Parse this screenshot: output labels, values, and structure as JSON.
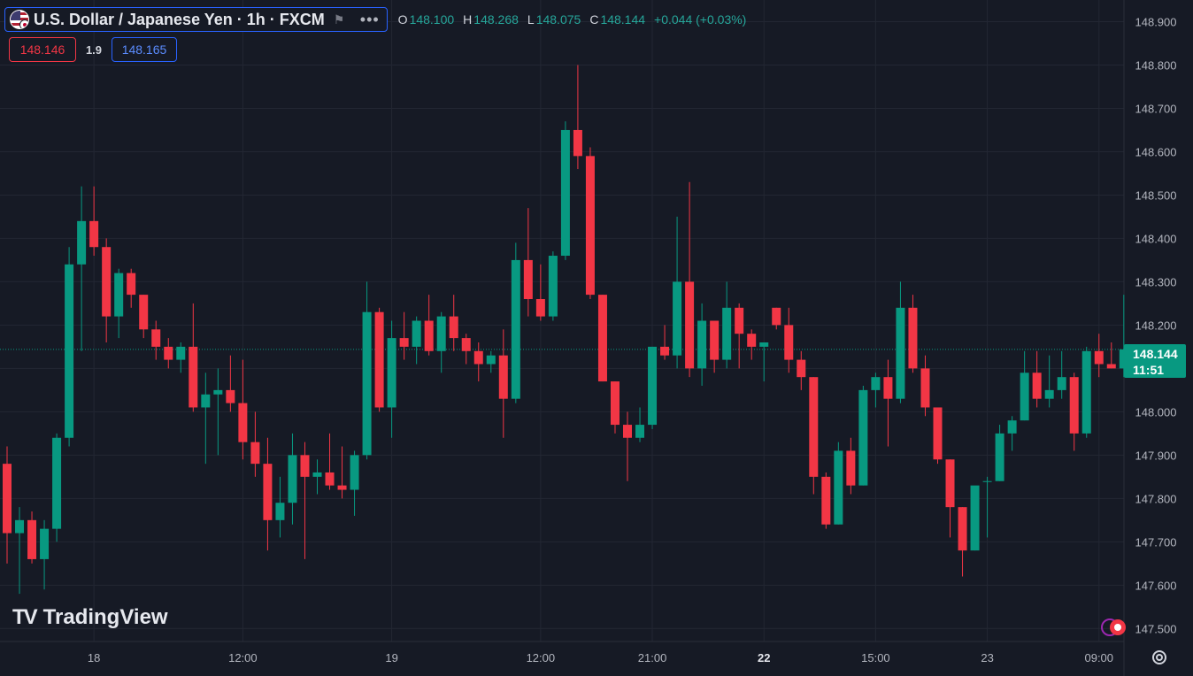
{
  "header": {
    "title": "U.S. Dollar / Japanese Yen · 1h · FXCM",
    "ohlc": [
      {
        "key": "O",
        "value": "148.100"
      },
      {
        "key": "H",
        "value": "148.268"
      },
      {
        "key": "L",
        "value": "148.075"
      },
      {
        "key": "C",
        "value": "148.144"
      }
    ],
    "change": "+0.044 (+0.03%)"
  },
  "trade": {
    "sell_price": "148.146",
    "spread": "1.9",
    "buy_price": "148.165"
  },
  "last_price": {
    "price": "148.144",
    "countdown": "11:51"
  },
  "logo": {
    "text": "TradingView"
  },
  "colors": {
    "up": "#089981",
    "down": "#f23645",
    "background": "#161a25",
    "grid": "#232733"
  },
  "chart_data": {
    "type": "candlestick",
    "title": "U.S. Dollar / Japanese Yen · 1h · FXCM",
    "ylim": [
      147.47,
      148.95
    ],
    "y_ticks": [
      147.5,
      147.6,
      147.7,
      147.8,
      147.9,
      148.0,
      148.1,
      148.2,
      148.3,
      148.4,
      148.5,
      148.6,
      148.7,
      148.8,
      148.9
    ],
    "x_ticks": [
      {
        "label": "18",
        "bar": 7,
        "bold": false
      },
      {
        "label": "12:00",
        "bar": 19,
        "bold": false
      },
      {
        "label": "19",
        "bar": 31,
        "bold": false
      },
      {
        "label": "12:00",
        "bar": 43,
        "bold": false
      },
      {
        "label": "21:00",
        "bar": 52,
        "bold": false
      },
      {
        "label": "22",
        "bar": 61,
        "bold": true
      },
      {
        "label": "15:00",
        "bar": 70,
        "bold": false
      },
      {
        "label": "23",
        "bar": 79,
        "bold": false
      },
      {
        "label": "09:00",
        "bar": 88,
        "bold": false
      }
    ],
    "current_price": 148.144,
    "candles": [
      {
        "o": 147.88,
        "h": 147.92,
        "l": 147.65,
        "c": 147.72
      },
      {
        "o": 147.72,
        "h": 147.78,
        "l": 147.58,
        "c": 147.75
      },
      {
        "o": 147.75,
        "h": 147.77,
        "l": 147.65,
        "c": 147.66
      },
      {
        "o": 147.66,
        "h": 147.75,
        "l": 147.59,
        "c": 147.73
      },
      {
        "o": 147.73,
        "h": 147.95,
        "l": 147.7,
        "c": 147.94
      },
      {
        "o": 147.94,
        "h": 148.38,
        "l": 147.92,
        "c": 148.34
      },
      {
        "o": 148.34,
        "h": 148.52,
        "l": 148.14,
        "c": 148.44
      },
      {
        "o": 148.44,
        "h": 148.52,
        "l": 148.36,
        "c": 148.38
      },
      {
        "o": 148.38,
        "h": 148.4,
        "l": 148.16,
        "c": 148.22
      },
      {
        "o": 148.22,
        "h": 148.33,
        "l": 148.17,
        "c": 148.32
      },
      {
        "o": 148.32,
        "h": 148.33,
        "l": 148.24,
        "c": 148.27
      },
      {
        "o": 148.27,
        "h": 148.27,
        "l": 148.17,
        "c": 148.19
      },
      {
        "o": 148.19,
        "h": 148.21,
        "l": 148.12,
        "c": 148.15
      },
      {
        "o": 148.15,
        "h": 148.17,
        "l": 148.1,
        "c": 148.12
      },
      {
        "o": 148.12,
        "h": 148.16,
        "l": 148.09,
        "c": 148.15
      },
      {
        "o": 148.15,
        "h": 148.25,
        "l": 148.0,
        "c": 148.01
      },
      {
        "o": 148.01,
        "h": 148.09,
        "l": 147.88,
        "c": 148.04
      },
      {
        "o": 148.04,
        "h": 148.1,
        "l": 147.9,
        "c": 148.05
      },
      {
        "o": 148.05,
        "h": 148.13,
        "l": 148.0,
        "c": 148.02
      },
      {
        "o": 148.02,
        "h": 148.12,
        "l": 147.89,
        "c": 147.93
      },
      {
        "o": 147.93,
        "h": 148.0,
        "l": 147.85,
        "c": 147.88
      },
      {
        "o": 147.88,
        "h": 147.94,
        "l": 147.68,
        "c": 147.75
      },
      {
        "o": 147.75,
        "h": 147.85,
        "l": 147.71,
        "c": 147.79
      },
      {
        "o": 147.79,
        "h": 147.95,
        "l": 147.74,
        "c": 147.9
      },
      {
        "o": 147.9,
        "h": 147.93,
        "l": 147.66,
        "c": 147.85
      },
      {
        "o": 147.85,
        "h": 147.89,
        "l": 147.81,
        "c": 147.86
      },
      {
        "o": 147.86,
        "h": 147.95,
        "l": 147.82,
        "c": 147.83
      },
      {
        "o": 147.83,
        "h": 147.92,
        "l": 147.8,
        "c": 147.82
      },
      {
        "o": 147.82,
        "h": 147.91,
        "l": 147.76,
        "c": 147.9
      },
      {
        "o": 147.9,
        "h": 148.3,
        "l": 147.89,
        "c": 148.23
      },
      {
        "o": 148.23,
        "h": 148.24,
        "l": 148.0,
        "c": 148.01
      },
      {
        "o": 148.01,
        "h": 148.21,
        "l": 147.94,
        "c": 148.17
      },
      {
        "o": 148.17,
        "h": 148.23,
        "l": 148.12,
        "c": 148.15
      },
      {
        "o": 148.15,
        "h": 148.22,
        "l": 148.11,
        "c": 148.21
      },
      {
        "o": 148.21,
        "h": 148.27,
        "l": 148.13,
        "c": 148.14
      },
      {
        "o": 148.14,
        "h": 148.23,
        "l": 148.09,
        "c": 148.22
      },
      {
        "o": 148.22,
        "h": 148.27,
        "l": 148.14,
        "c": 148.17
      },
      {
        "o": 148.17,
        "h": 148.18,
        "l": 148.11,
        "c": 148.14
      },
      {
        "o": 148.14,
        "h": 148.16,
        "l": 148.07,
        "c": 148.11
      },
      {
        "o": 148.11,
        "h": 148.14,
        "l": 148.09,
        "c": 148.13
      },
      {
        "o": 148.13,
        "h": 148.19,
        "l": 147.94,
        "c": 148.03
      },
      {
        "o": 148.03,
        "h": 148.39,
        "l": 148.02,
        "c": 148.35
      },
      {
        "o": 148.35,
        "h": 148.47,
        "l": 148.22,
        "c": 148.26
      },
      {
        "o": 148.26,
        "h": 148.34,
        "l": 148.21,
        "c": 148.22
      },
      {
        "o": 148.22,
        "h": 148.37,
        "l": 148.21,
        "c": 148.36
      },
      {
        "o": 148.36,
        "h": 148.67,
        "l": 148.35,
        "c": 148.65
      },
      {
        "o": 148.65,
        "h": 148.8,
        "l": 148.56,
        "c": 148.59
      },
      {
        "o": 148.59,
        "h": 148.61,
        "l": 148.26,
        "c": 148.27
      },
      {
        "o": 148.27,
        "h": 148.27,
        "l": 148.07,
        "c": 148.07
      },
      {
        "o": 148.07,
        "h": 148.07,
        "l": 147.95,
        "c": 147.97
      },
      {
        "o": 147.97,
        "h": 148.0,
        "l": 147.84,
        "c": 147.94
      },
      {
        "o": 147.94,
        "h": 148.01,
        "l": 147.93,
        "c": 147.97
      },
      {
        "o": 147.97,
        "h": 148.15,
        "l": 147.96,
        "c": 148.15
      },
      {
        "o": 148.15,
        "h": 148.2,
        "l": 148.12,
        "c": 148.13
      },
      {
        "o": 148.13,
        "h": 148.45,
        "l": 148.1,
        "c": 148.3
      },
      {
        "o": 148.3,
        "h": 148.53,
        "l": 148.08,
        "c": 148.1
      },
      {
        "o": 148.1,
        "h": 148.25,
        "l": 148.06,
        "c": 148.21
      },
      {
        "o": 148.21,
        "h": 148.21,
        "l": 148.09,
        "c": 148.12
      },
      {
        "o": 148.12,
        "h": 148.3,
        "l": 148.1,
        "c": 148.24
      },
      {
        "o": 148.24,
        "h": 148.25,
        "l": 148.1,
        "c": 148.18
      },
      {
        "o": 148.18,
        "h": 148.19,
        "l": 148.12,
        "c": 148.15
      },
      {
        "o": 148.15,
        "h": 148.16,
        "l": 148.07,
        "c": 148.16
      },
      {
        "o": 148.24,
        "h": 148.24,
        "l": 148.19,
        "c": 148.2
      },
      {
        "o": 148.2,
        "h": 148.24,
        "l": 148.09,
        "c": 148.12
      },
      {
        "o": 148.12,
        "h": 148.14,
        "l": 148.05,
        "c": 148.08
      },
      {
        "o": 148.08,
        "h": 148.08,
        "l": 147.81,
        "c": 147.85
      },
      {
        "o": 147.85,
        "h": 147.86,
        "l": 147.73,
        "c": 147.74
      },
      {
        "o": 147.74,
        "h": 147.93,
        "l": 147.74,
        "c": 147.91
      },
      {
        "o": 147.91,
        "h": 147.94,
        "l": 147.81,
        "c": 147.83
      },
      {
        "o": 147.83,
        "h": 148.06,
        "l": 147.83,
        "c": 148.05
      },
      {
        "o": 148.05,
        "h": 148.09,
        "l": 148.01,
        "c": 148.08
      },
      {
        "o": 148.08,
        "h": 148.12,
        "l": 147.92,
        "c": 148.03
      },
      {
        "o": 148.03,
        "h": 148.3,
        "l": 148.02,
        "c": 148.24
      },
      {
        "o": 148.24,
        "h": 148.27,
        "l": 148.09,
        "c": 148.1
      },
      {
        "o": 148.1,
        "h": 148.13,
        "l": 147.99,
        "c": 148.01
      },
      {
        "o": 148.01,
        "h": 148.01,
        "l": 147.88,
        "c": 147.89
      },
      {
        "o": 147.89,
        "h": 147.89,
        "l": 147.71,
        "c": 147.78
      },
      {
        "o": 147.78,
        "h": 147.78,
        "l": 147.62,
        "c": 147.68
      },
      {
        "o": 147.68,
        "h": 147.82,
        "l": 147.68,
        "c": 147.83
      },
      {
        "o": 147.84,
        "h": 147.85,
        "l": 147.71,
        "c": 147.84
      },
      {
        "o": 147.84,
        "h": 147.97,
        "l": 147.84,
        "c": 147.95
      },
      {
        "o": 147.95,
        "h": 147.99,
        "l": 147.91,
        "c": 147.98
      },
      {
        "o": 147.98,
        "h": 148.14,
        "l": 147.98,
        "c": 148.09
      },
      {
        "o": 148.09,
        "h": 148.14,
        "l": 148.01,
        "c": 148.03
      },
      {
        "o": 148.03,
        "h": 148.13,
        "l": 148.01,
        "c": 148.05
      },
      {
        "o": 148.05,
        "h": 148.14,
        "l": 148.03,
        "c": 148.08
      },
      {
        "o": 148.08,
        "h": 148.09,
        "l": 147.91,
        "c": 147.95
      },
      {
        "o": 147.95,
        "h": 148.15,
        "l": 147.94,
        "c": 148.14
      },
      {
        "o": 148.14,
        "h": 148.18,
        "l": 148.08,
        "c": 148.11
      },
      {
        "o": 148.11,
        "h": 148.16,
        "l": 148.1,
        "c": 148.1
      },
      {
        "o": 148.1,
        "h": 148.27,
        "l": 148.08,
        "c": 148.144
      }
    ]
  }
}
